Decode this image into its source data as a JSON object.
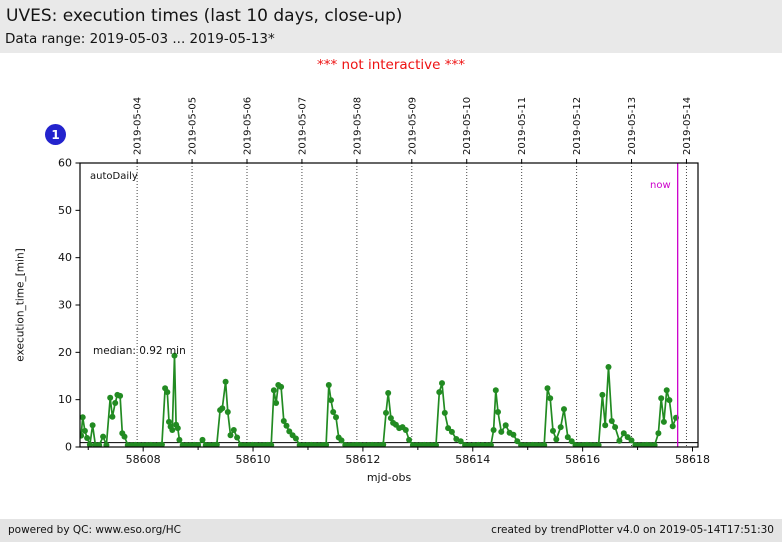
{
  "header": {
    "title": "UVES: execution times (last 10 days, close-up)",
    "subtitle": "Data range: 2019-05-03 ... 2019-05-13*"
  },
  "notice": "*** not interactive ***",
  "badge": {
    "label": "1",
    "color": "#2323cd"
  },
  "footer": {
    "left": "powered by QC: www.eso.org/HC",
    "right": "created by trendPlotter v4.0 on 2019-05-14T17:51:30"
  },
  "chart_data": {
    "type": "line",
    "title": "UVES: execution times (last 10 days, close-up)",
    "xlabel": "mjd-obs",
    "ylabel": "execution_time_[min]",
    "xlim": [
      58606.85,
      58618.1
    ],
    "ylim": [
      0,
      60
    ],
    "grid": "vertical-dotted",
    "legend_position": "none",
    "x_major_ticks": [
      58608,
      58610,
      58612,
      58614,
      58616,
      58618
    ],
    "x_minor_ticks": [
      58607,
      58609,
      58611,
      58613,
      58615,
      58617
    ],
    "y_ticks": [
      0,
      10,
      20,
      30,
      40,
      50,
      60
    ],
    "top_axis": [
      {
        "label": "2019-05-04",
        "mjd": 58607.89
      },
      {
        "label": "2019-05-05",
        "mjd": 58608.89
      },
      {
        "label": "2019-05-06",
        "mjd": 58609.89
      },
      {
        "label": "2019-05-07",
        "mjd": 58610.89
      },
      {
        "label": "2019-05-08",
        "mjd": 58611.89
      },
      {
        "label": "2019-05-09",
        "mjd": 58612.89
      },
      {
        "label": "2019-05-10",
        "mjd": 58613.89
      },
      {
        "label": "2019-05-11",
        "mjd": 58614.89
      },
      {
        "label": "2019-05-12",
        "mjd": 58615.89
      },
      {
        "label": "2019-05-13",
        "mjd": 58616.89
      },
      {
        "label": "2019-05-14",
        "mjd": 58617.89
      }
    ],
    "annotations": {
      "inset_label": "autoDaily",
      "median_label": "median: 0.92 min",
      "median_value": 0.92,
      "now_label": "now",
      "now_mjd": 58617.73
    },
    "colors": {
      "line": "#228B22",
      "now": "#cc00cc",
      "median_line": "#000000",
      "grid": "#444444"
    },
    "series": [
      {
        "name": "execution_time",
        "color": "#228B22",
        "points": [
          [
            58606.87,
            2.4
          ],
          [
            58606.9,
            6.3
          ],
          [
            58606.94,
            3.4
          ],
          [
            58606.98,
            1.9
          ],
          [
            58607.03,
            0.5
          ],
          [
            58607.08,
            4.6
          ],
          [
            58607.13,
            0.4
          ],
          [
            58607.2,
            0.4
          ],
          [
            58607.27,
            2.2
          ],
          [
            58607.33,
            0.4
          ],
          [
            58607.4,
            10.4
          ],
          [
            58607.44,
            6.4
          ],
          [
            58607.49,
            9.3
          ],
          [
            58607.53,
            11.0
          ],
          [
            58607.58,
            10.8
          ],
          [
            58607.62,
            2.9
          ],
          [
            58607.66,
            2.2
          ],
          [
            58607.72,
            0.4
          ],
          [
            58607.79,
            0.35
          ],
          [
            58607.86,
            0.45
          ],
          [
            58607.93,
            0.4
          ],
          [
            58608.0,
            0.35
          ],
          [
            58608.07,
            0.4
          ],
          [
            58608.14,
            0.45
          ],
          [
            58608.21,
            0.35
          ],
          [
            58608.28,
            0.4
          ],
          [
            58608.34,
            0.5
          ],
          [
            58608.4,
            12.4
          ],
          [
            58608.44,
            11.6
          ],
          [
            58608.47,
            5.3
          ],
          [
            58608.5,
            4.3
          ],
          [
            58608.53,
            3.6
          ],
          [
            58608.57,
            19.3
          ],
          [
            58608.6,
            4.7
          ],
          [
            58608.63,
            4.0
          ],
          [
            58608.66,
            1.5
          ],
          [
            58608.72,
            0.4
          ],
          [
            58608.79,
            0.35
          ],
          [
            58608.86,
            0.4
          ],
          [
            58608.93,
            0.45
          ],
          [
            58609.0,
            0.4
          ],
          [
            58609.08,
            1.5
          ],
          [
            58609.14,
            0.4
          ],
          [
            58609.21,
            0.35
          ],
          [
            58609.28,
            0.4
          ],
          [
            58609.34,
            0.5
          ],
          [
            58609.4,
            7.8
          ],
          [
            58609.44,
            8.2
          ],
          [
            58609.5,
            13.8
          ],
          [
            58609.54,
            7.4
          ],
          [
            58609.59,
            2.5
          ],
          [
            58609.65,
            3.6
          ],
          [
            58609.71,
            2.0
          ],
          [
            58609.78,
            0.4
          ],
          [
            58609.85,
            0.35
          ],
          [
            58609.92,
            0.4
          ],
          [
            58609.99,
            0.45
          ],
          [
            58610.06,
            0.4
          ],
          [
            58610.13,
            0.35
          ],
          [
            58610.2,
            0.4
          ],
          [
            58610.27,
            0.45
          ],
          [
            58610.33,
            0.4
          ],
          [
            58610.38,
            12.0
          ],
          [
            58610.42,
            9.3
          ],
          [
            58610.46,
            13.1
          ],
          [
            58610.51,
            12.7
          ],
          [
            58610.56,
            5.5
          ],
          [
            58610.61,
            4.5
          ],
          [
            58610.66,
            3.3
          ],
          [
            58610.72,
            2.5
          ],
          [
            58610.78,
            1.8
          ],
          [
            58610.85,
            0.4
          ],
          [
            58610.92,
            0.35
          ],
          [
            58610.99,
            0.4
          ],
          [
            58611.06,
            0.45
          ],
          [
            58611.13,
            0.4
          ],
          [
            58611.2,
            0.35
          ],
          [
            58611.27,
            0.4
          ],
          [
            58611.33,
            0.45
          ],
          [
            58611.38,
            13.1
          ],
          [
            58611.42,
            9.9
          ],
          [
            58611.46,
            7.4
          ],
          [
            58611.51,
            6.3
          ],
          [
            58611.56,
            2.0
          ],
          [
            58611.61,
            1.4
          ],
          [
            58611.68,
            0.4
          ],
          [
            58611.75,
            0.35
          ],
          [
            58611.82,
            0.4
          ],
          [
            58611.89,
            0.45
          ],
          [
            58611.96,
            0.4
          ],
          [
            58612.03,
            0.35
          ],
          [
            58612.1,
            0.4
          ],
          [
            58612.17,
            0.45
          ],
          [
            58612.24,
            0.4
          ],
          [
            58612.31,
            0.35
          ],
          [
            58612.37,
            0.5
          ],
          [
            58612.42,
            7.2
          ],
          [
            58612.46,
            11.4
          ],
          [
            58612.51,
            6.1
          ],
          [
            58612.55,
            5.1
          ],
          [
            58612.6,
            4.7
          ],
          [
            58612.66,
            4.0
          ],
          [
            58612.72,
            4.2
          ],
          [
            58612.78,
            3.6
          ],
          [
            58612.84,
            1.5
          ],
          [
            58612.91,
            0.4
          ],
          [
            58612.98,
            0.35
          ],
          [
            58613.05,
            0.4
          ],
          [
            58613.12,
            0.45
          ],
          [
            58613.19,
            0.4
          ],
          [
            58613.26,
            0.35
          ],
          [
            58613.33,
            0.4
          ],
          [
            58613.39,
            11.6
          ],
          [
            58613.44,
            13.5
          ],
          [
            58613.49,
            7.2
          ],
          [
            58613.55,
            4.0
          ],
          [
            58613.62,
            3.2
          ],
          [
            58613.7,
            1.7
          ],
          [
            58613.78,
            1.2
          ],
          [
            58613.86,
            0.4
          ],
          [
            58613.94,
            0.35
          ],
          [
            58614.02,
            0.4
          ],
          [
            58614.1,
            0.45
          ],
          [
            58614.18,
            0.4
          ],
          [
            58614.26,
            0.35
          ],
          [
            58614.33,
            0.4
          ],
          [
            58614.38,
            3.6
          ],
          [
            58614.42,
            12.0
          ],
          [
            58614.46,
            7.4
          ],
          [
            58614.52,
            3.2
          ],
          [
            58614.6,
            4.6
          ],
          [
            58614.67,
            3.0
          ],
          [
            58614.74,
            2.6
          ],
          [
            58614.81,
            1.2
          ],
          [
            58614.88,
            0.4
          ],
          [
            58614.95,
            0.35
          ],
          [
            58615.02,
            0.4
          ],
          [
            58615.09,
            0.45
          ],
          [
            58615.16,
            0.4
          ],
          [
            58615.23,
            0.35
          ],
          [
            58615.3,
            0.4
          ],
          [
            58615.36,
            12.4
          ],
          [
            58615.41,
            10.3
          ],
          [
            58615.46,
            3.4
          ],
          [
            58615.52,
            1.6
          ],
          [
            58615.6,
            4.2
          ],
          [
            58615.66,
            8.0
          ],
          [
            58615.73,
            2.1
          ],
          [
            58615.8,
            1.2
          ],
          [
            58615.87,
            0.4
          ],
          [
            58615.94,
            0.35
          ],
          [
            58616.01,
            0.4
          ],
          [
            58616.08,
            0.45
          ],
          [
            58616.15,
            0.4
          ],
          [
            58616.22,
            0.35
          ],
          [
            58616.29,
            0.4
          ],
          [
            58616.36,
            11.0
          ],
          [
            58616.41,
            4.6
          ],
          [
            58616.47,
            16.9
          ],
          [
            58616.53,
            5.5
          ],
          [
            58616.59,
            4.2
          ],
          [
            58616.67,
            1.3
          ],
          [
            58616.75,
            2.9
          ],
          [
            58616.82,
            2.1
          ],
          [
            58616.89,
            1.4
          ],
          [
            58616.96,
            0.4
          ],
          [
            58617.03,
            0.35
          ],
          [
            58617.1,
            0.4
          ],
          [
            58617.17,
            0.45
          ],
          [
            58617.24,
            0.4
          ],
          [
            58617.31,
            0.4
          ],
          [
            58617.38,
            2.9
          ],
          [
            58617.43,
            10.3
          ],
          [
            58617.48,
            5.3
          ],
          [
            58617.53,
            12.0
          ],
          [
            58617.58,
            9.9
          ],
          [
            58617.64,
            4.4
          ],
          [
            58617.7,
            6.2
          ]
        ]
      }
    ]
  }
}
